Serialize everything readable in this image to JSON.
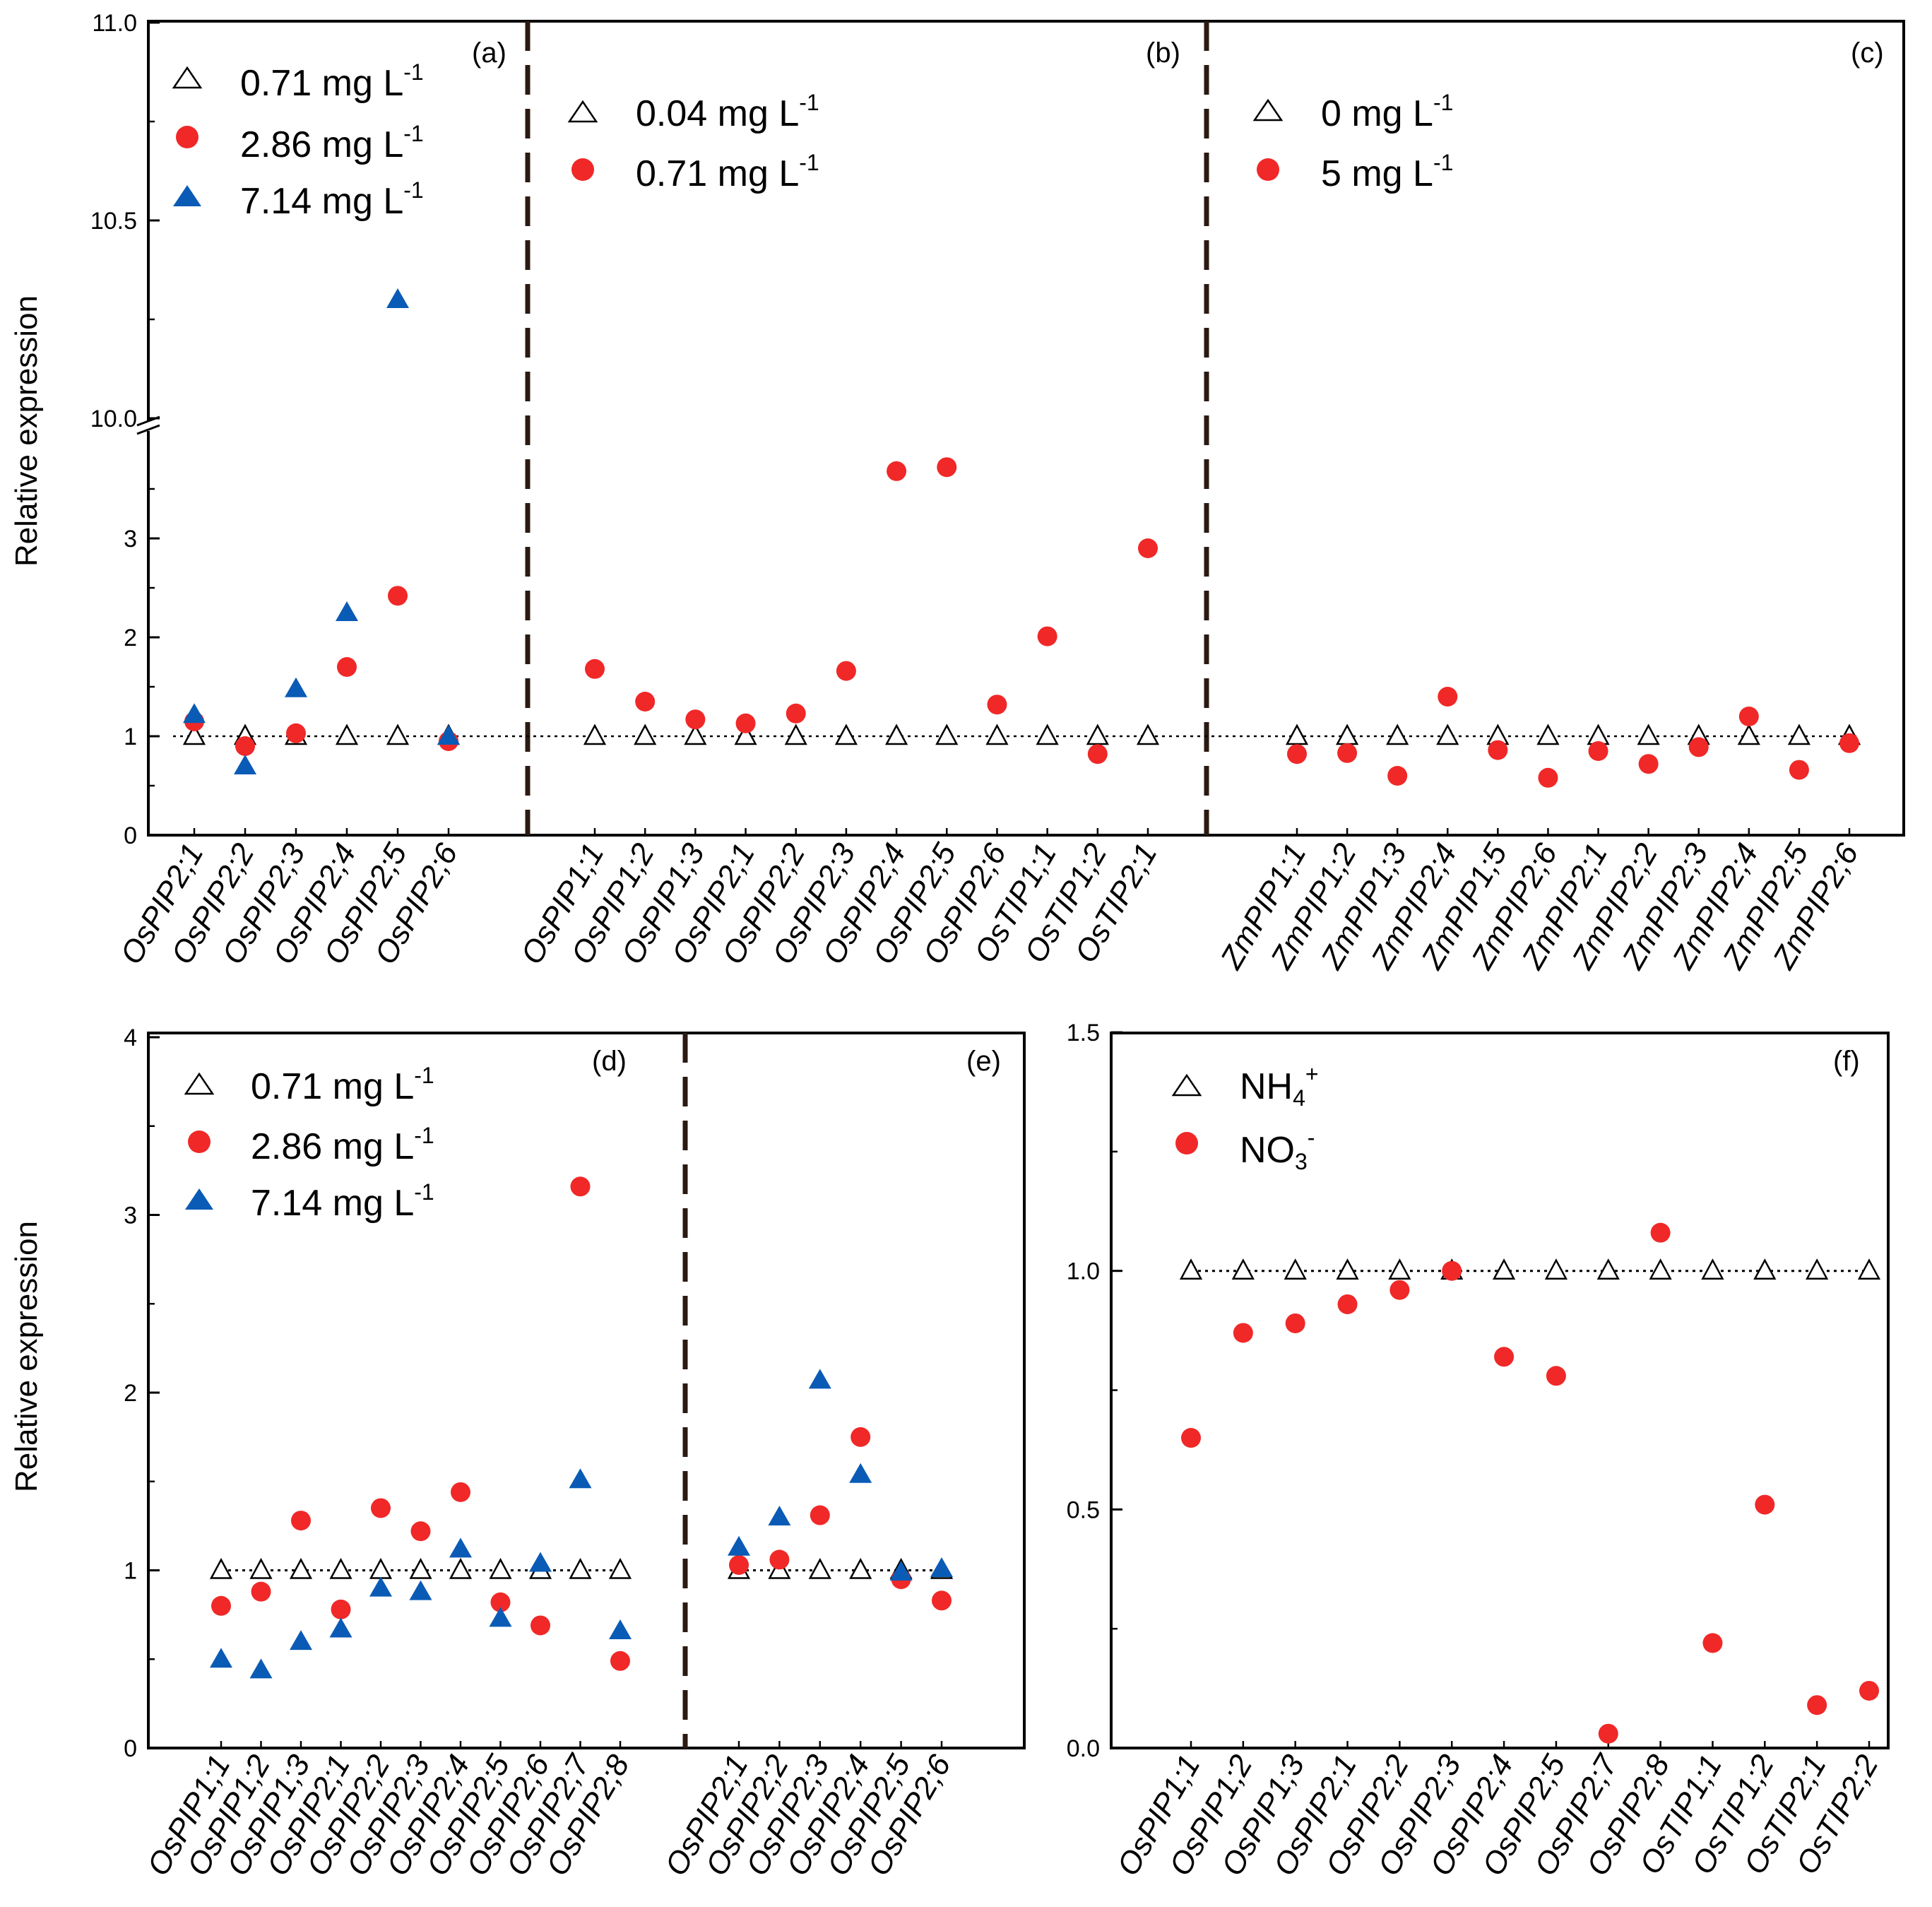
{
  "chart_data": [
    {
      "type": "scatter",
      "panel": "top",
      "ylabel": "Relative expression",
      "ylim": [
        0,
        4
      ],
      "upper_ylim": [
        10.0,
        11.0
      ],
      "yticks": [
        0,
        1,
        2,
        3
      ],
      "upper_yticks": [
        10.0,
        10.5,
        11.0
      ],
      "ytick_labels": [
        "0",
        "1",
        "2",
        "3",
        "10.0",
        "10.5",
        "11.0"
      ],
      "axis_break": true,
      "groups": [
        {
          "tag": "(a)",
          "categories": [
            "OsPIP2;1",
            "OsPIP2;2",
            "OsPIP2;3",
            "OsPIP2;4",
            "OsPIP2;5",
            "OsPIP2;6"
          ],
          "legend": [
            "0.71 mg L",
            "2.86 mg L",
            "7.14 mg L"
          ],
          "legend_sup": "-1",
          "series": [
            {
              "name": "0.71 mg L-1",
              "marker": "open-triangle",
              "values": [
                1,
                1,
                1,
                1,
                1,
                1
              ]
            },
            {
              "name": "2.86 mg L-1",
              "marker": "red-circle",
              "values": [
                1.15,
                0.9,
                1.03,
                1.7,
                2.42,
                0.95
              ]
            },
            {
              "name": "7.14 mg L-1",
              "marker": "blue-triangle",
              "values": [
                1.22,
                0.7,
                1.48,
                2.25,
                10.3,
                1.0
              ]
            }
          ]
        },
        {
          "tag": "(b)",
          "categories": [
            "OsPIP1;1",
            "OsPIP1;2",
            "OsPIP1;3",
            "OsPIP2;1",
            "OsPIP2;2",
            "OsPIP2;3",
            "OsPIP2;4",
            "OsPIP2;5",
            "OsPIP2;6",
            "OsTIP1;1",
            "OsTIP1;2",
            "OsTIP2;1"
          ],
          "legend": [
            "0.04 mg L",
            "0.71 mg L"
          ],
          "legend_sup": "-1",
          "series": [
            {
              "name": "0.04 mg L-1",
              "marker": "open-triangle",
              "values": [
                1,
                1,
                1,
                1,
                1,
                1,
                1,
                1,
                1,
                1,
                1,
                1
              ]
            },
            {
              "name": "0.71 mg L-1",
              "marker": "red-circle",
              "values": [
                1.68,
                1.35,
                1.17,
                1.13,
                1.23,
                1.66,
                3.68,
                3.72,
                1.32,
                2.01,
                0.82,
                2.9
              ]
            }
          ]
        },
        {
          "tag": "(c)",
          "categories": [
            "ZmPIP1;1",
            "ZmPIP1;2",
            "ZmPIP1;3",
            "ZmPIP2;4",
            "ZmPIP1;5",
            "ZmPIP2;6",
            "ZmPIP2;1",
            "ZmPIP2;2",
            "ZmPIP2;3",
            "ZmPIP2;4",
            "ZmPIP2;5",
            "ZmPIP2;6"
          ],
          "legend": [
            "0 mg L",
            "5 mg L"
          ],
          "legend_sup": "-1",
          "series": [
            {
              "name": "0 mg L-1",
              "marker": "open-triangle",
              "values": [
                1,
                1,
                1,
                1,
                1,
                1,
                1,
                1,
                1,
                1,
                1,
                1
              ]
            },
            {
              "name": "5 mg L-1",
              "marker": "red-circle",
              "values": [
                0.82,
                0.83,
                0.6,
                1.4,
                0.86,
                0.58,
                0.85,
                0.72,
                0.89,
                1.2,
                0.66,
                0.93
              ]
            }
          ]
        }
      ]
    },
    {
      "type": "scatter",
      "panel": "bottom-left",
      "ylabel": "Relative expression",
      "ylim": [
        0,
        4
      ],
      "yticks": [
        0,
        1,
        2,
        3,
        4
      ],
      "ytick_labels": [
        "0",
        "1",
        "2",
        "3",
        "4"
      ],
      "groups": [
        {
          "tag": "(d)",
          "categories": [
            "OsPIP1;1",
            "OsPIP1;2",
            "OsPIP1;3",
            "OsPIP2;1",
            "OsPIP2;2",
            "OsPIP2;3",
            "OsPIP2;4",
            "OsPIP2;5",
            "OsPIP2;6",
            "OsPIP2;7",
            "OsPIP2;8"
          ],
          "legend": [
            "0.71 mg L",
            "2.86 mg L",
            "7.14 mg L"
          ],
          "legend_sup": "-1",
          "series": [
            {
              "name": "0.71 mg L-1",
              "marker": "open-triangle",
              "values": [
                1,
                1,
                1,
                1,
                1,
                1,
                1,
                1,
                1,
                1,
                1
              ]
            },
            {
              "name": "2.86 mg L-1",
              "marker": "red-circle",
              "values": [
                0.8,
                0.88,
                1.28,
                0.78,
                1.35,
                1.22,
                1.44,
                0.82,
                0.69,
                3.16,
                0.49
              ]
            },
            {
              "name": "7.14 mg L-1",
              "marker": "blue-triangle",
              "values": [
                0.5,
                0.44,
                0.6,
                0.67,
                0.9,
                0.88,
                1.12,
                0.73,
                1.04,
                1.51,
                0.66
              ]
            }
          ]
        },
        {
          "tag": "(e)",
          "categories": [
            "OsPIP2;1",
            "OsPIP2;2",
            "OsPIP2;3",
            "OsPIP2;4",
            "OsPIP2;5",
            "OsPIP2;6"
          ],
          "series": [
            {
              "name": "0.71 mg L-1",
              "marker": "open-triangle",
              "values": [
                1,
                1,
                1,
                1,
                1,
                1
              ]
            },
            {
              "name": "2.86 mg L-1",
              "marker": "red-circle",
              "values": [
                1.03,
                1.06,
                1.31,
                1.75,
                0.95,
                0.83
              ]
            },
            {
              "name": "7.14 mg L-1",
              "marker": "blue-triangle",
              "values": [
                1.13,
                1.3,
                2.07,
                1.54,
                0.99,
                1.01
              ]
            }
          ]
        }
      ]
    },
    {
      "type": "scatter",
      "panel": "bottom-right",
      "ylim": [
        0,
        1.5
      ],
      "yticks": [
        0,
        0.5,
        1.0,
        1.5
      ],
      "ytick_labels": [
        "0.0",
        "0.5",
        "1.0",
        "1.5"
      ],
      "groups": [
        {
          "tag": "(f)",
          "categories": [
            "OsPIP1;1",
            "OsPIP1;2",
            "OsPIP1;3",
            "OsPIP2;1",
            "OsPIP2;2",
            "OsPIP2;3",
            "OsPIP2;4",
            "OsPIP2;5",
            "OsPIP2;7",
            "OsPIP2;8",
            "OsTIP1;1",
            "OsTIP1;2",
            "OsTIP2;1",
            "OsTIP2;2"
          ],
          "legend": [
            "NH",
            "NO"
          ],
          "legend_sub": [
            "4",
            "3"
          ],
          "legend_sup": [
            "+",
            "-"
          ],
          "series": [
            {
              "name": "NH4+",
              "marker": "open-triangle",
              "values": [
                1,
                1,
                1,
                1,
                1,
                1,
                1,
                1,
                1,
                1,
                1,
                1,
                1,
                1
              ]
            },
            {
              "name": "NO3-",
              "marker": "red-circle",
              "values": [
                0.65,
                0.87,
                0.89,
                0.93,
                0.96,
                1.0,
                0.82,
                0.78,
                0.03,
                1.08,
                0.22,
                0.51,
                0.09,
                0.12
              ]
            }
          ]
        }
      ]
    }
  ],
  "colors": {
    "red_circle": "#f02828",
    "blue_triangle": "#0a5bb5",
    "axis": "#000000",
    "divider": "#2a1a12"
  }
}
